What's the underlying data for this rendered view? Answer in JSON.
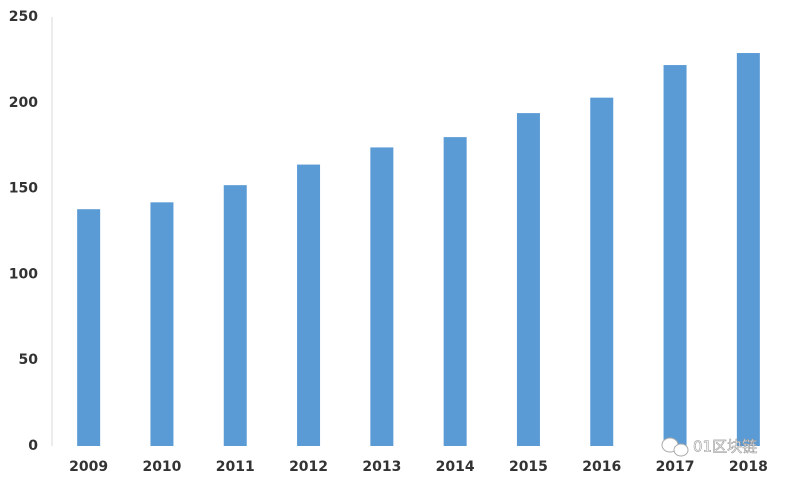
{
  "chart_data": {
    "type": "bar",
    "categories": [
      "2009",
      "2010",
      "2011",
      "2012",
      "2013",
      "2014",
      "2015",
      "2016",
      "2017",
      "2018"
    ],
    "values": [
      138,
      142,
      152,
      164,
      174,
      180,
      194,
      203,
      222,
      229
    ],
    "color": "#5b9bd5",
    "ylim": [
      0,
      250
    ],
    "yticks": [
      0,
      50,
      100,
      150,
      200,
      250
    ],
    "grid": false,
    "watermark": "01区块链"
  }
}
